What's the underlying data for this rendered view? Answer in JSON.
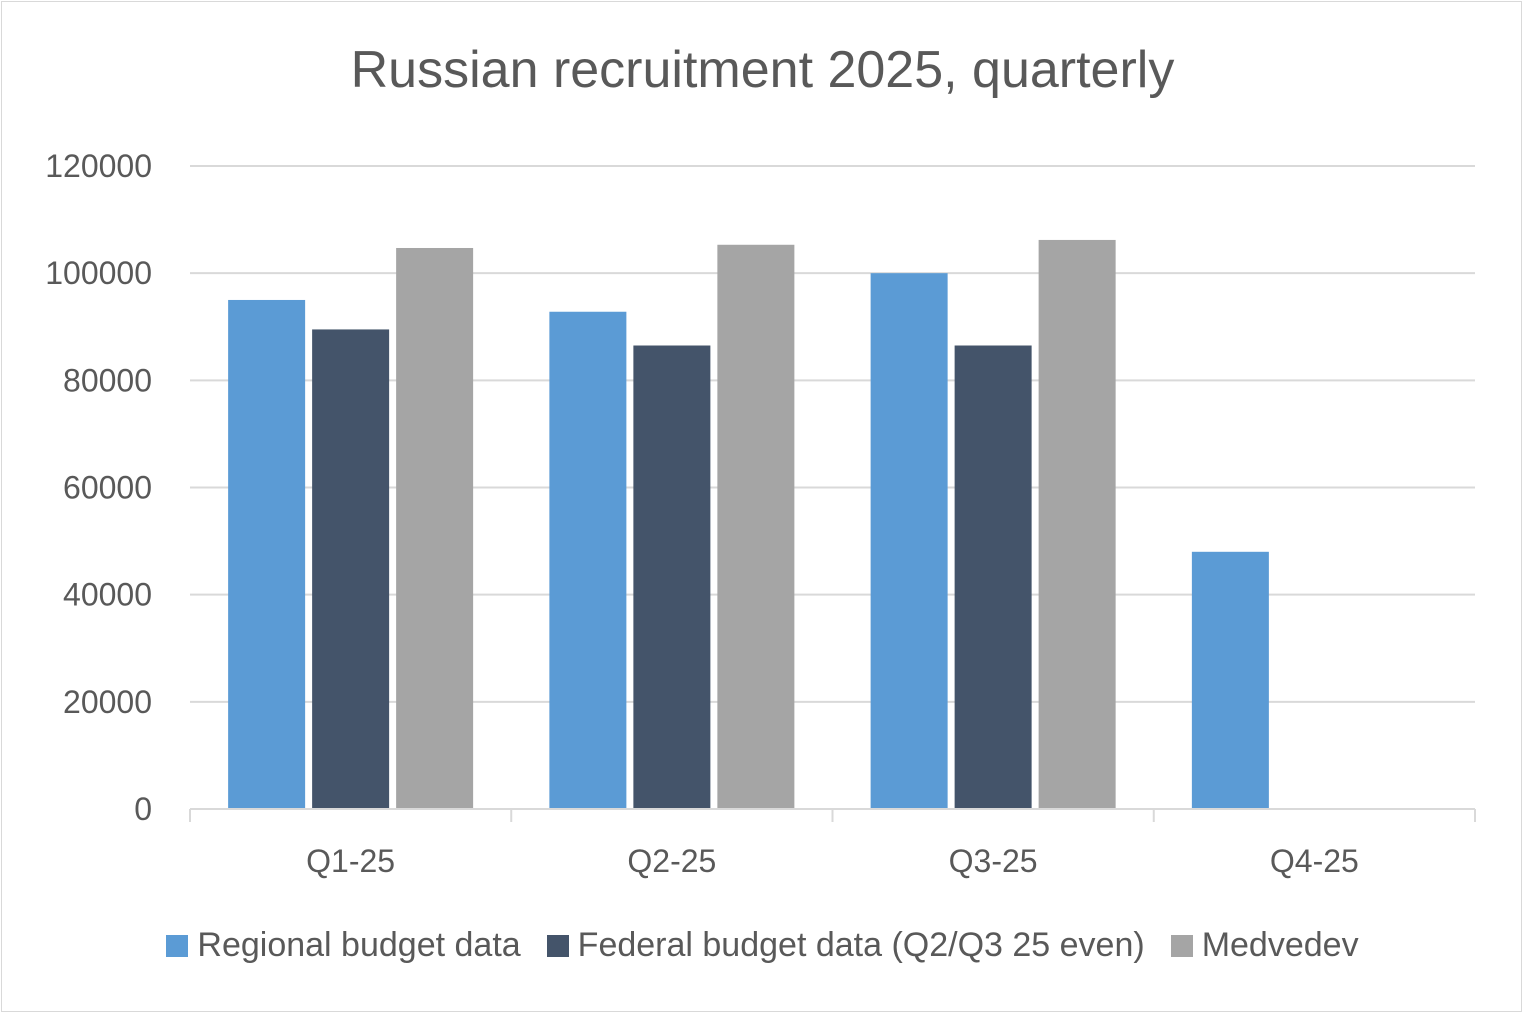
{
  "chart_data": {
    "type": "bar",
    "title": "Russian recruitment 2025, quarterly",
    "xlabel": "",
    "ylabel": "",
    "categories": [
      "Q1-25",
      "Q2-25",
      "Q3-25",
      "Q4-25"
    ],
    "ylim": [
      0,
      120000
    ],
    "yticks": [
      0,
      20000,
      40000,
      60000,
      80000,
      100000,
      120000
    ],
    "ytick_labels": [
      "0",
      "20000",
      "40000",
      "60000",
      "80000",
      "100000",
      "120000"
    ],
    "grid": true,
    "legend_position": "bottom",
    "series": [
      {
        "name": "Regional budget data",
        "color": "#5b9bd5",
        "values": [
          95000,
          92800,
          100000,
          48000
        ]
      },
      {
        "name": "Federal budget data (Q2/Q3 25 even)",
        "color": "#44546a",
        "values": [
          89500,
          86500,
          86500,
          null
        ]
      },
      {
        "name": "Medvedev",
        "color": "#a5a5a5",
        "values": [
          104700,
          105300,
          106200,
          null
        ]
      }
    ]
  }
}
